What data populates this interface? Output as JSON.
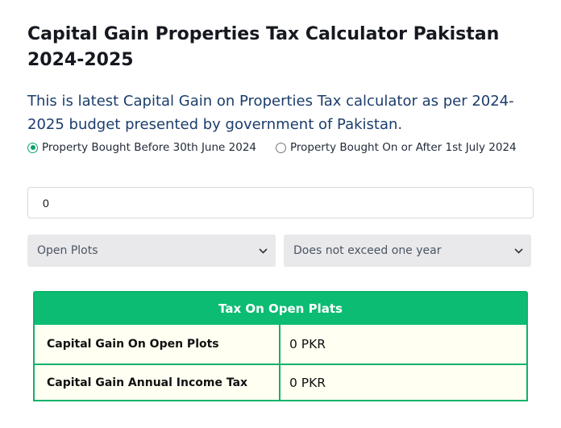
{
  "page": {
    "title": "Capital Gain Properties Tax Calculator Pakistan 2024-2025",
    "description": "This is latest Capital Gain on Properties Tax calculator as per 2024-2025 budget presented by government of Pakistan."
  },
  "radio_options": [
    {
      "label": "Property Bought Before 30th June 2024",
      "checked": true
    },
    {
      "label": "Property Bought On or After 1st July 2024",
      "checked": false
    }
  ],
  "amount_input": {
    "value": "0"
  },
  "selects": {
    "property_type": "Open Plots",
    "holding_period": "Does not exceed one year"
  },
  "result_table": {
    "header": "Tax On Open Plats",
    "rows": [
      {
        "label": "Capital Gain On Open Plots",
        "value": "0 PKR"
      },
      {
        "label": "Capital Gain Annual Income Tax",
        "value": "0 PKR"
      }
    ]
  },
  "colors": {
    "accent": "#0cbc73",
    "table_bg": "#fffff2",
    "description_text": "#1c3d6b"
  }
}
